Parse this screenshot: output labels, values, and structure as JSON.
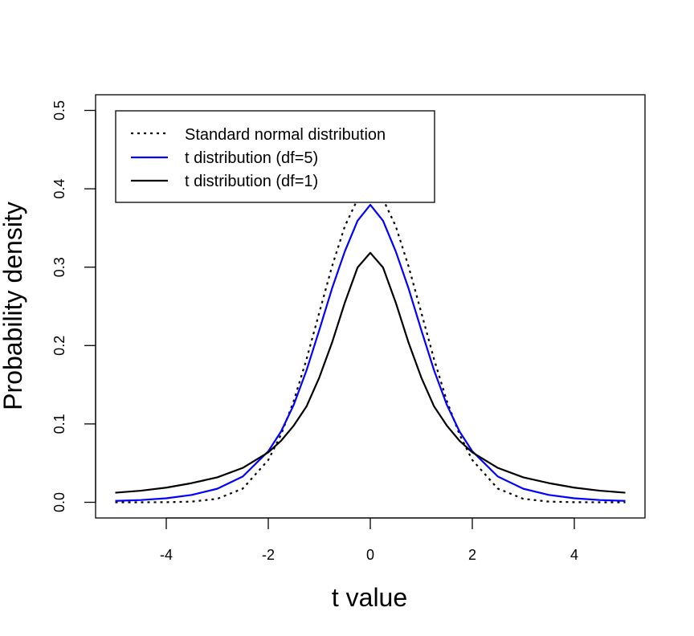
{
  "chart_data": {
    "type": "line",
    "title": "",
    "xlabel": "t value",
    "ylabel": "Probability density",
    "xlim": [
      -5,
      5
    ],
    "ylim": [
      0,
      0.5
    ],
    "x_ticks": [
      -4,
      -2,
      0,
      2,
      4
    ],
    "y_ticks": [
      0.0,
      0.1,
      0.2,
      0.3,
      0.4,
      0.5
    ],
    "x_tick_labels": [
      "-4",
      "-2",
      "0",
      "2",
      "4"
    ],
    "y_tick_labels": [
      "0.0",
      "0.1",
      "0.2",
      "0.3",
      "0.4",
      "0.5"
    ],
    "grid": false,
    "legend_position": "top-left",
    "x": [
      -5,
      -4.5,
      -4,
      -3.5,
      -3,
      -2.5,
      -2,
      -1.75,
      -1.5,
      -1.25,
      -1,
      -0.75,
      -0.5,
      -0.25,
      0,
      0.25,
      0.5,
      0.75,
      1,
      1.25,
      1.5,
      1.75,
      2,
      2.5,
      3,
      3.5,
      4,
      4.5,
      5
    ],
    "series": [
      {
        "name": "Standard normal distribution",
        "color": "#000000",
        "style": "dotted",
        "values": [
          1.5e-06,
          1.6e-05,
          0.000134,
          0.000873,
          0.00443,
          0.0175,
          0.054,
          0.0863,
          0.1295,
          0.1826,
          0.242,
          0.3011,
          0.3521,
          0.3867,
          0.3989,
          0.3867,
          0.3521,
          0.3011,
          0.242,
          0.1826,
          0.1295,
          0.0863,
          0.054,
          0.0175,
          0.00443,
          0.000873,
          0.000134,
          1.6e-05,
          1.5e-06
        ]
      },
      {
        "name": "t distribution (df=5)",
        "color": "#0000ff",
        "style": "solid",
        "values": [
          0.00176,
          0.0029,
          0.0051,
          0.0094,
          0.0173,
          0.0329,
          0.0651,
          0.0903,
          0.1245,
          0.1684,
          0.2197,
          0.2729,
          0.32,
          0.3592,
          0.3796,
          0.3592,
          0.32,
          0.2729,
          0.2197,
          0.1684,
          0.1245,
          0.0903,
          0.0651,
          0.0329,
          0.0173,
          0.0094,
          0.0051,
          0.0029,
          0.00176
        ]
      },
      {
        "name": "t distribution (df=1)",
        "color": "#000000",
        "style": "solid",
        "values": [
          0.01224,
          0.01481,
          0.01872,
          0.02448,
          0.03183,
          0.0439,
          0.06366,
          0.07846,
          0.09794,
          0.1224,
          0.15915,
          0.20372,
          0.25465,
          0.29958,
          0.31831,
          0.29958,
          0.25465,
          0.20372,
          0.15915,
          0.1224,
          0.09794,
          0.07846,
          0.06366,
          0.0439,
          0.03183,
          0.02448,
          0.01872,
          0.01481,
          0.01224
        ]
      }
    ]
  }
}
